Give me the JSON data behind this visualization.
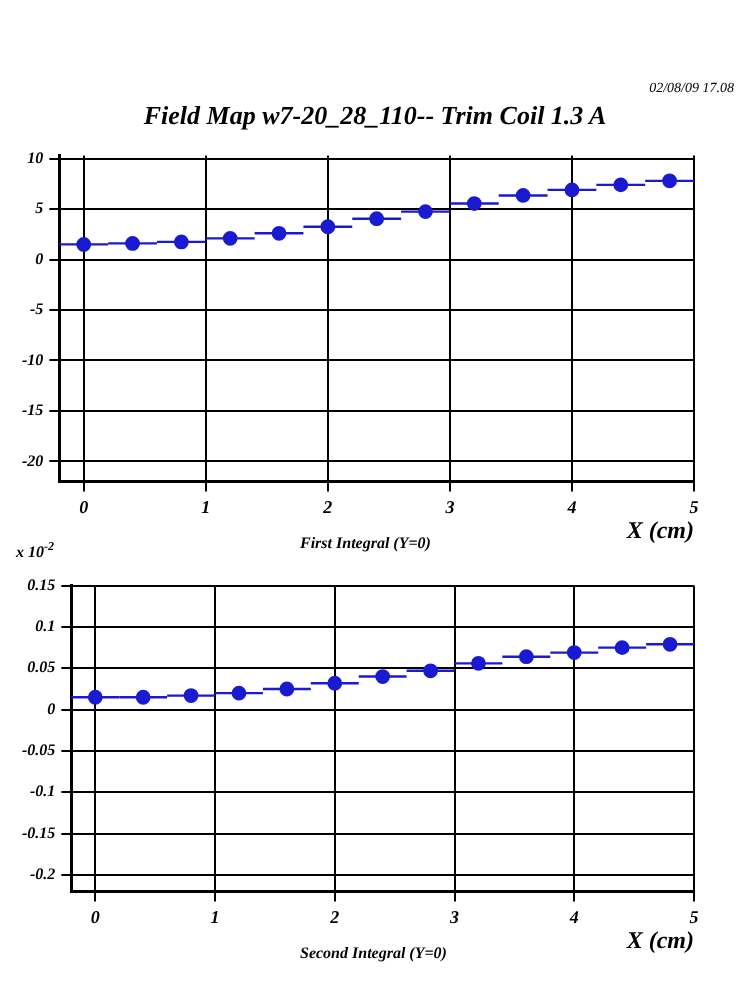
{
  "chart_data": [
    {
      "type": "scatter",
      "title": "Field Map w7-20_28_110-- Trim Coil 1.3 A",
      "xlabel": "X (cm)",
      "annotations": [
        "02/08/09  17.08",
        "First Integral (Y=0)"
      ],
      "x": [
        0,
        0.4,
        0.8,
        1.2,
        1.6,
        2.0,
        2.4,
        2.8,
        3.2,
        3.6,
        4.0,
        4.4,
        4.8
      ],
      "series": [
        {
          "color": "#1a1ad0",
          "values": [
            1.5,
            1.6,
            1.75,
            2.1,
            2.6,
            3.25,
            4.05,
            4.75,
            5.55,
            6.35,
            6.9,
            7.4,
            7.8
          ],
          "xerrors": [
            0.2,
            0.2,
            0.2,
            0.2,
            0.2,
            0.2,
            0.2,
            0.2,
            0.2,
            0.2,
            0.2,
            0.2,
            0.2
          ]
        }
      ],
      "xlim": [
        -0.2,
        5
      ],
      "xticks": [
        0,
        1,
        2,
        3,
        4,
        5
      ],
      "ylim": [
        -22,
        10.3
      ],
      "yticks": [
        -20,
        -15,
        -10,
        -5,
        0,
        5,
        10
      ],
      "grid": true,
      "legend": false,
      "marker": "circle"
    },
    {
      "type": "scatter",
      "xlabel": "X (cm)",
      "annotations": [
        "x 10$^{-2}$",
        "Second Integral (Y=0)"
      ],
      "x": [
        0,
        0.4,
        0.8,
        1.2,
        1.6,
        2.0,
        2.4,
        2.8,
        3.2,
        3.6,
        4.0,
        4.4,
        4.8
      ],
      "series": [
        {
          "color": "#1a1ad0",
          "values": [
            0.015,
            0.015,
            0.017,
            0.02,
            0.025,
            0.032,
            0.04,
            0.047,
            0.056,
            0.064,
            0.069,
            0.075,
            0.079
          ],
          "xerrors": [
            0.2,
            0.2,
            0.2,
            0.2,
            0.2,
            0.2,
            0.2,
            0.2,
            0.2,
            0.2,
            0.2,
            0.2,
            0.2
          ]
        }
      ],
      "xlim": [
        -0.2,
        5
      ],
      "xticks": [
        0,
        1,
        2,
        3,
        4,
        5
      ],
      "ylim": [
        -0.22,
        0.15
      ],
      "yticks": [
        -0.2,
        -0.15,
        -0.1,
        -0.05,
        0,
        0.05,
        0.1,
        0.15
      ],
      "grid": true,
      "legend": false,
      "marker": "circle"
    }
  ]
}
